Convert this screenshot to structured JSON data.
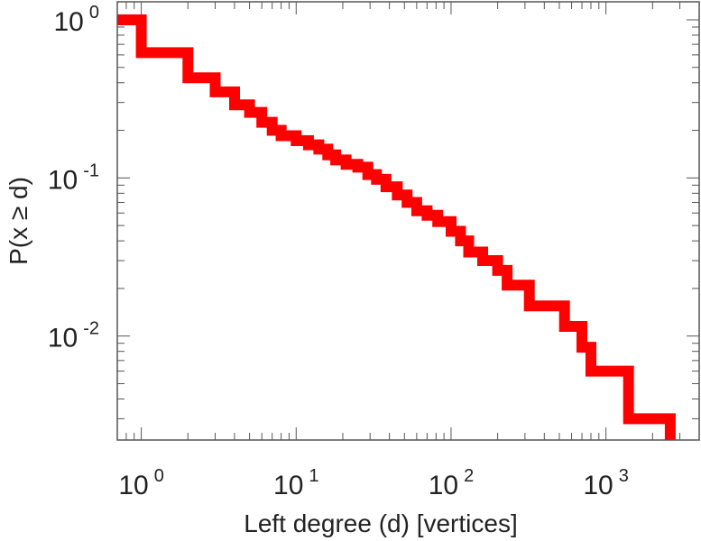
{
  "chart_data": {
    "type": "line",
    "title": "",
    "xlabel": "Left degree (d) [vertices]",
    "ylabel": "P(x ≥ d)",
    "x_scale": "log",
    "y_scale": "log",
    "xlim": [
      0.7,
      4000
    ],
    "ylim": [
      0.0022,
      1.3
    ],
    "grid": false,
    "x_ticks": [
      {
        "base": "10",
        "exp": "0",
        "value": 1
      },
      {
        "base": "10",
        "exp": "1",
        "value": 10
      },
      {
        "base": "10",
        "exp": "2",
        "value": 100
      },
      {
        "base": "10",
        "exp": "3",
        "value": 1000
      }
    ],
    "y_ticks": [
      {
        "base": "10",
        "exp": "0",
        "value": 1
      },
      {
        "base": "10",
        "exp": "-1",
        "value": 0.1
      },
      {
        "base": "10",
        "exp": "-2",
        "value": 0.01
      }
    ],
    "series": [
      {
        "color": "#ff0000",
        "step": "post",
        "points": [
          [
            0.7,
            1.0
          ],
          [
            1.0,
            0.62
          ],
          [
            2.0,
            0.43
          ],
          [
            3.0,
            0.35
          ],
          [
            4.0,
            0.29
          ],
          [
            5.0,
            0.26
          ],
          [
            6.0,
            0.225
          ],
          [
            7.0,
            0.2
          ],
          [
            8.0,
            0.185
          ],
          [
            10.0,
            0.172
          ],
          [
            12.0,
            0.162
          ],
          [
            14.0,
            0.152
          ],
          [
            16.0,
            0.14
          ],
          [
            18.0,
            0.13
          ],
          [
            21.0,
            0.122
          ],
          [
            25.0,
            0.117
          ],
          [
            29.0,
            0.105
          ],
          [
            33.0,
            0.098
          ],
          [
            38.0,
            0.088
          ],
          [
            45.0,
            0.078
          ],
          [
            52.0,
            0.07
          ],
          [
            60.0,
            0.062
          ],
          [
            70.0,
            0.058
          ],
          [
            82.0,
            0.053
          ],
          [
            100.0,
            0.046
          ],
          [
            115.0,
            0.04
          ],
          [
            130.0,
            0.034
          ],
          [
            160.0,
            0.03
          ],
          [
            200.0,
            0.026
          ],
          [
            230.0,
            0.021
          ],
          [
            320.0,
            0.0155
          ],
          [
            540.0,
            0.0115
          ],
          [
            700.0,
            0.0085
          ],
          [
            800.0,
            0.006
          ],
          [
            1400.0,
            0.003
          ],
          [
            2600.0,
            0.003
          ]
        ],
        "drop_to": 0.0022
      }
    ]
  }
}
